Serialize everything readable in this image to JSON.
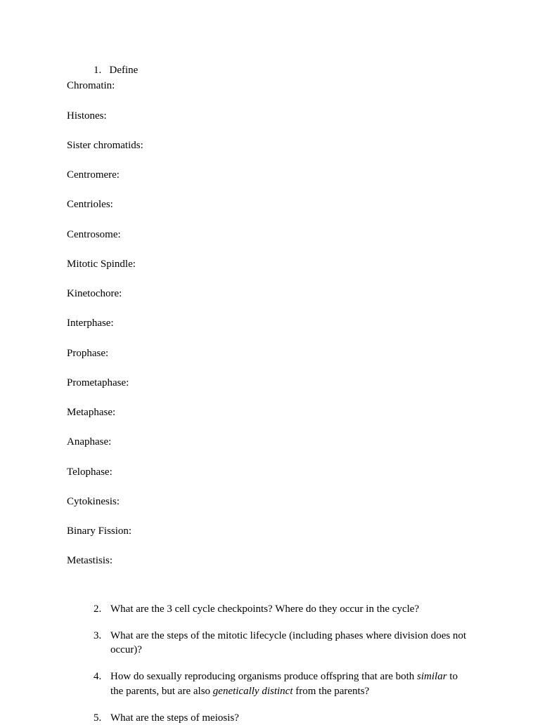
{
  "header": {
    "number": "1.",
    "label": "Define"
  },
  "terms": [
    "Chromatin:",
    "Histones:",
    "Sister chromatids:",
    "Centromere:",
    "Centrioles:",
    "Centrosome:",
    "Mitotic Spindle:",
    "Kinetochore:",
    "Interphase:",
    "Prophase:",
    "Prometaphase:",
    "Metaphase:",
    "Anaphase:",
    "Telophase:",
    "Cytokinesis:",
    "Binary Fission:",
    "Metastisis:"
  ],
  "questions": [
    {
      "number": "2.",
      "parts": [
        {
          "text": "What are the 3 cell cycle checkpoints? Where do they occur in the cycle?",
          "italic": false
        }
      ]
    },
    {
      "number": "3.",
      "parts": [
        {
          "text": "What are the steps of the mitotic lifecycle (including phases where division does not occur)?",
          "italic": false
        }
      ]
    },
    {
      "number": "4.",
      "parts": [
        {
          "text": "How do sexually reproducing organisms produce offspring that are both ",
          "italic": false
        },
        {
          "text": "similar",
          "italic": true
        },
        {
          "text": " to the parents, but are also ",
          "italic": false
        },
        {
          "text": "genetically distinct",
          "italic": true
        },
        {
          "text": " from the parents?",
          "italic": false
        }
      ]
    },
    {
      "number": "5.",
      "parts": [
        {
          "text": "What are the steps of meiosis?",
          "italic": false
        }
      ]
    }
  ]
}
